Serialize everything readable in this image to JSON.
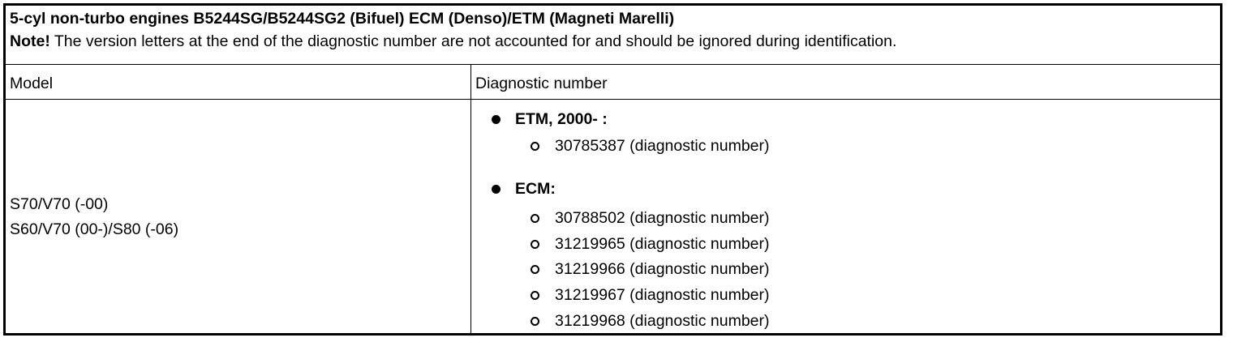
{
  "title": "5-cyl non-turbo engines B5244SG/B5244SG2 (Bifuel) ECM (Denso)/ETM (Magneti Marelli)",
  "note": {
    "label": "Note!",
    "text": " The version letters at the end of the diagnostic number are not accounted for and should be ignored during identification."
  },
  "columns": [
    "Model",
    "Diagnostic number"
  ],
  "row": {
    "models": [
      "S70/V70 (-00)",
      "S60/V70 (00-)/S80 (-06)"
    ],
    "groups": [
      {
        "label": "ETM, 2000- :",
        "items": [
          "30785387 (diagnostic number)"
        ]
      },
      {
        "label": "ECM:",
        "items": [
          "30788502 (diagnostic number)",
          "31219965 (diagnostic number)",
          "31219966 (diagnostic number)",
          "31219967 (diagnostic number)",
          "31219968 (diagnostic number)"
        ]
      }
    ]
  }
}
